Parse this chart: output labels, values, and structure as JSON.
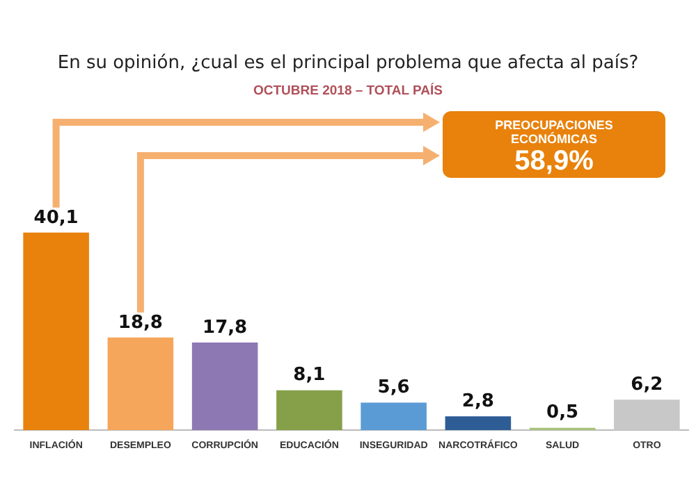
{
  "chart_data": {
    "type": "bar",
    "title": "En su opinión, ¿cual es el principal problema que afecta al país?",
    "subtitle": "OCTUBRE 2018 – TOTAL PAÍS",
    "categories": [
      "INFLACIÓN",
      "DESEMPLEO",
      "CORRUPCIÓN",
      "EDUCACIÓN",
      "INSEGURIDAD",
      "NARCOTRÁFICO",
      "SALUD",
      "OTRO"
    ],
    "values": [
      40.1,
      18.8,
      17.8,
      8.1,
      5.6,
      2.8,
      0.5,
      6.2
    ],
    "value_labels": [
      "40,1",
      "18,8",
      "17,8",
      "8,1",
      "5,6",
      "2,8",
      "0,5",
      "6,2"
    ],
    "colors": [
      "#e8820c",
      "#f5a65b",
      "#8e78b4",
      "#86a04a",
      "#5b9bd5",
      "#2e5d96",
      "#a9c27a",
      "#c8c8c8"
    ],
    "annotations": [
      "PREOCUPACIONES ECONÓMICAS",
      "58,9%"
    ],
    "grid": false,
    "legend": false
  }
}
